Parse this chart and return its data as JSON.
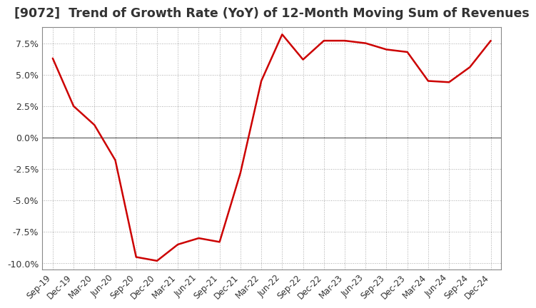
{
  "title": "[9072]  Trend of Growth Rate (YoY) of 12-Month Moving Sum of Revenues",
  "title_fontsize": 12.5,
  "line_color": "#cc0000",
  "background_color": "#ffffff",
  "plot_bg_color": "#ffffff",
  "grid_color": "#aaaaaa",
  "zero_line_color": "#555555",
  "border_color": "#888888",
  "ylim": [
    -0.105,
    0.088
  ],
  "yticks": [
    -0.1,
    -0.075,
    -0.05,
    -0.025,
    0.0,
    0.025,
    0.05,
    0.075
  ],
  "ytick_labels": [
    "-10.0%",
    "-7.5%",
    "-5.0%",
    "-2.5%",
    "0.0%",
    "2.5%",
    "5.0%",
    "7.5%"
  ],
  "x_labels": [
    "Sep-19",
    "Dec-19",
    "Mar-20",
    "Jun-20",
    "Sep-20",
    "Dec-20",
    "Mar-21",
    "Jun-21",
    "Sep-21",
    "Dec-21",
    "Mar-22",
    "Jun-22",
    "Sep-22",
    "Dec-22",
    "Mar-23",
    "Jun-23",
    "Sep-23",
    "Dec-23",
    "Mar-24",
    "Jun-24",
    "Sep-24",
    "Dec-24"
  ],
  "y_values": [
    0.063,
    0.025,
    0.01,
    -0.018,
    -0.095,
    -0.098,
    -0.085,
    -0.08,
    -0.083,
    -0.028,
    0.045,
    0.082,
    0.062,
    0.077,
    0.077,
    0.075,
    0.07,
    0.068,
    0.045,
    0.044,
    0.056,
    0.077
  ]
}
